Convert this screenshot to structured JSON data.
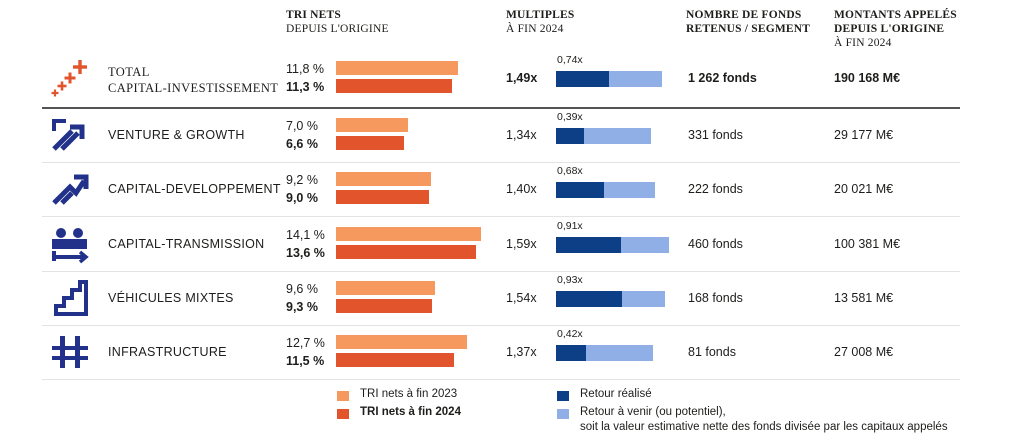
{
  "headers": {
    "tri_title": "TRI NETS",
    "tri_sub": "DEPUIS L'ORIGINE",
    "mult_title": "MULTIPLES",
    "mult_sub": "À FIN 2024",
    "funds_title_1": "NOMBRE DE FONDS",
    "funds_title_2": "RETENUS / SEGMENT",
    "amt_title_1": "MONTANTS APPELÉS",
    "amt_title_2": "DEPUIS L'ORIGINE",
    "amt_sub": "À FIN 2024"
  },
  "colors": {
    "tri_2023": "#f5995f",
    "tri_2024": "#e2542b",
    "retour_realise": "#0d3f87",
    "retour_a_venir": "#8fafe6",
    "icon_orange": "#e2542b",
    "icon_blue": "#22328a"
  },
  "chart_data": {
    "type": "bar",
    "segments": [
      {
        "name_1": "TOTAL",
        "name_2": "CAPITAL-INVESTISSEMENT",
        "icon": "plus-signs-icon",
        "tri_2023": 11.8,
        "tri_2023_label": "11,8 %",
        "tri_2024": 11.3,
        "tri_2024_label": "11,3 %",
        "multiple": 1.49,
        "multiple_label": "1,49x",
        "retour_realise": 0.74,
        "retour_realise_label": "0,74x",
        "funds": "1 262 fonds",
        "amount": "190 168 M€"
      },
      {
        "name_1": "VENTURE & GROWTH",
        "name_2": "",
        "icon": "growth-arrow-icon",
        "tri_2023": 7.0,
        "tri_2023_label": "7,0 %",
        "tri_2024": 6.6,
        "tri_2024_label": "6,6 %",
        "multiple": 1.34,
        "multiple_label": "1,34x",
        "retour_realise": 0.39,
        "retour_realise_label": "0,39x",
        "funds": "331 fonds",
        "amount": "29 177 M€"
      },
      {
        "name_1": "CAPITAL-DEVELOPPEMENT",
        "name_2": "",
        "icon": "development-arrow-icon",
        "tri_2023": 9.2,
        "tri_2023_label": "9,2 %",
        "tri_2024": 9.0,
        "tri_2024_label": "9,0 %",
        "multiple": 1.4,
        "multiple_label": "1,40x",
        "retour_realise": 0.68,
        "retour_realise_label": "0,68x",
        "funds": "222 fonds",
        "amount": "20 021 M€"
      },
      {
        "name_1": "CAPITAL-TRANSMISSION",
        "name_2": "",
        "icon": "transmission-people-icon",
        "tri_2023": 14.1,
        "tri_2023_label": "14,1 %",
        "tri_2024": 13.6,
        "tri_2024_label": "13,6 %",
        "multiple": 1.59,
        "multiple_label": "1,59x",
        "retour_realise": 0.91,
        "retour_realise_label": "0,91x",
        "funds": "460 fonds",
        "amount": "100 381 M€"
      },
      {
        "name_1": "VÉHICULES MIXTES",
        "name_2": "",
        "icon": "stairs-icon",
        "tri_2023": 9.6,
        "tri_2023_label": "9,6 %",
        "tri_2024": 9.3,
        "tri_2024_label": "9,3 %",
        "multiple": 1.54,
        "multiple_label": "1,54x",
        "retour_realise": 0.93,
        "retour_realise_label": "0,93x",
        "funds": "168 fonds",
        "amount": "13 581 M€"
      },
      {
        "name_1": "INFRASTRUCTURE",
        "name_2": "",
        "icon": "infrastructure-icon",
        "tri_2023": 12.7,
        "tri_2023_label": "12,7 %",
        "tri_2024": 11.5,
        "tri_2024_label": "11,5 %",
        "multiple": 1.37,
        "multiple_label": "1,37x",
        "retour_realise": 0.42,
        "retour_realise_label": "0,42x",
        "funds": "81 fonds",
        "amount": "27 008 M€"
      }
    ],
    "legend": {
      "tri_2023": "TRI nets à fin 2023",
      "tri_2024": "TRI nets à fin 2024",
      "retour_realise": "Retour réalisé",
      "retour_a_venir_1": "Retour à venir (ou potentiel),",
      "retour_a_venir_2": "soit la valeur estimative nette des fonds divisée par les capitaux appelés"
    }
  }
}
